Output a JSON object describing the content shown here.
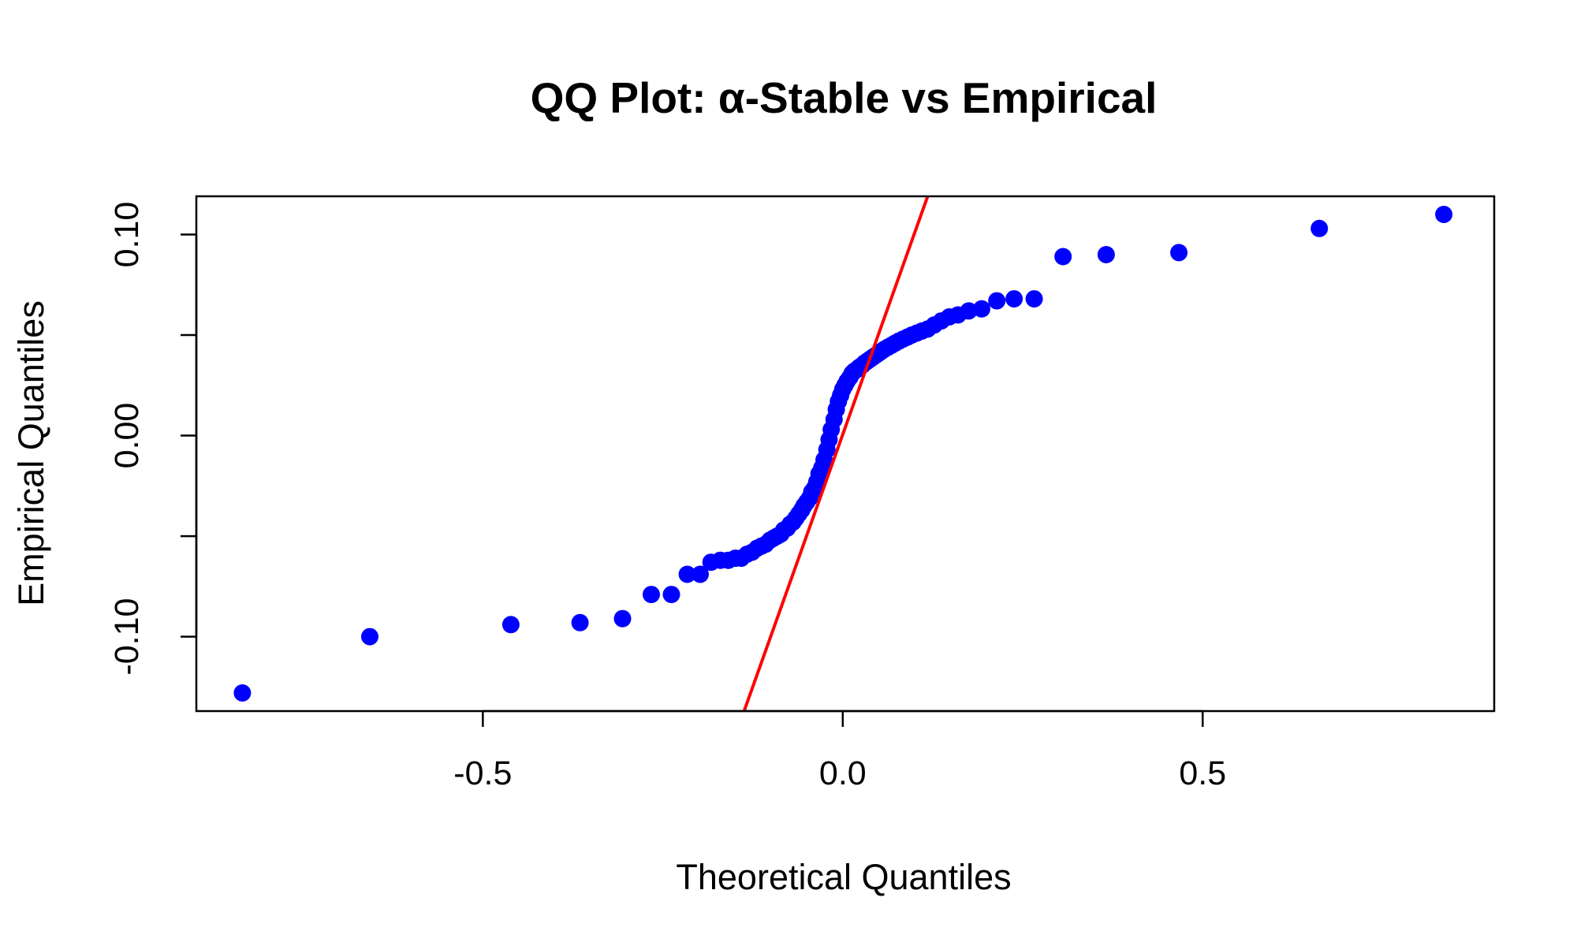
{
  "chart_data": {
    "type": "scatter",
    "title": "QQ Plot: α-Stable vs Empirical",
    "xlabel": "Theoretical Quantiles",
    "ylabel": "Empirical Quantiles",
    "xlim": [
      -0.898,
      0.905
    ],
    "ylim": [
      -0.137,
      0.119
    ],
    "xticks": [
      -0.5,
      0.0,
      0.5
    ],
    "xtick_labels": [
      "-0.5",
      "0.0",
      "0.5"
    ],
    "yticks": [
      -0.1,
      -0.05,
      0.0,
      0.05,
      0.1
    ],
    "ytick_labels": [
      "-0.10",
      "",
      "0.00",
      "",
      "0.10"
    ],
    "grid": false,
    "legend": "none",
    "colors": {
      "points": "#0000ff",
      "reference_line": "#ff0000",
      "axes": "#000000"
    },
    "series": [
      {
        "kind": "points",
        "x": [
          -0.834,
          -0.657,
          -0.461,
          -0.365,
          -0.306,
          -0.266,
          -0.238,
          -0.216,
          -0.198,
          -0.183,
          -0.17,
          -0.159,
          -0.149,
          -0.141,
          -0.133,
          -0.126,
          -0.119,
          -0.113,
          -0.107,
          -0.101,
          -0.096,
          -0.091,
          -0.086,
          -0.082,
          -0.077,
          -0.073,
          -0.069,
          -0.065,
          -0.061,
          -0.057,
          -0.054,
          -0.05,
          -0.046,
          -0.043,
          -0.039,
          -0.036,
          -0.033,
          -0.029,
          -0.026,
          -0.022,
          -0.019,
          -0.016,
          -0.012,
          -0.009,
          -0.006,
          -0.003,
          0.0,
          0.003,
          0.006,
          0.01,
          0.013,
          0.016,
          0.02,
          0.023,
          0.027,
          0.03,
          0.034,
          0.038,
          0.042,
          0.046,
          0.05,
          0.054,
          0.058,
          0.063,
          0.068,
          0.073,
          0.078,
          0.084,
          0.09,
          0.096,
          0.103,
          0.11,
          0.118,
          0.127,
          0.137,
          0.148,
          0.16,
          0.175,
          0.193,
          0.214,
          0.238,
          0.266,
          0.306,
          0.366,
          0.467,
          0.662,
          0.835
        ],
        "y": [
          -0.128,
          -0.1,
          -0.094,
          -0.093,
          -0.091,
          -0.079,
          -0.079,
          -0.069,
          -0.069,
          -0.063,
          -0.062,
          -0.062,
          -0.061,
          -0.061,
          -0.059,
          -0.058,
          -0.056,
          -0.055,
          -0.054,
          -0.052,
          -0.051,
          -0.05,
          -0.049,
          -0.047,
          -0.046,
          -0.044,
          -0.043,
          -0.041,
          -0.039,
          -0.037,
          -0.035,
          -0.033,
          -0.031,
          -0.028,
          -0.026,
          -0.023,
          -0.019,
          -0.016,
          -0.012,
          -0.007,
          -0.002,
          0.003,
          0.008,
          0.013,
          0.017,
          0.02,
          0.023,
          0.025,
          0.027,
          0.029,
          0.031,
          0.032,
          0.033,
          0.034,
          0.035,
          0.036,
          0.037,
          0.038,
          0.039,
          0.04,
          0.041,
          0.042,
          0.043,
          0.044,
          0.045,
          0.046,
          0.047,
          0.048,
          0.049,
          0.05,
          0.051,
          0.052,
          0.053,
          0.055,
          0.057,
          0.059,
          0.06,
          0.062,
          0.063,
          0.067,
          0.068,
          0.068,
          0.089,
          0.09,
          0.091,
          0.103,
          0.11
        ]
      },
      {
        "kind": "line",
        "x": [
          -0.137,
          0.118
        ],
        "y": [
          -0.137,
          0.119
        ]
      }
    ]
  }
}
